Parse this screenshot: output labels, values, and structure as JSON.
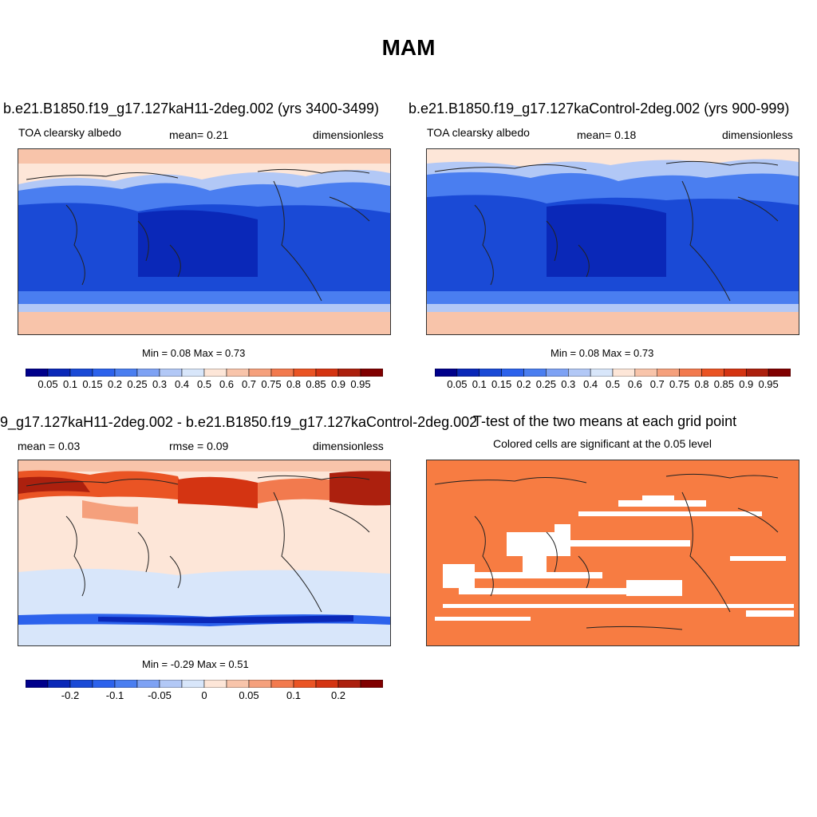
{
  "page_title": "MAM",
  "panels": [
    {
      "title": "b.e21.B1850.f19_g17.127kaH11-2deg.002 (yrs 3400-3499)",
      "left_label": "TOA clearsky albedo",
      "center_label": "mean=   0.21",
      "right_label": "dimensionless",
      "minmax": "Min =   0.08 Max =   0.73",
      "tick_labels": [
        "0.05",
        "0.1",
        "0.15",
        "0.2",
        "0.25",
        "0.3",
        "0.4",
        "0.5",
        "0.6",
        "0.7",
        "0.75",
        "0.8",
        "0.85",
        "0.9",
        "0.95"
      ]
    },
    {
      "title": "b.e21.B1850.f19_g17.127kaControl-2deg.002 (yrs 900-999)",
      "left_label": "TOA clearsky albedo",
      "center_label": "mean=   0.18",
      "right_label": "dimensionless",
      "minmax": "Min =   0.08 Max =   0.73",
      "tick_labels": [
        "0.05",
        "0.1",
        "0.15",
        "0.2",
        "0.25",
        "0.3",
        "0.4",
        "0.5",
        "0.6",
        "0.7",
        "0.75",
        "0.8",
        "0.85",
        "0.9",
        "0.95"
      ]
    },
    {
      "title": "9_g17.127kaH11-2deg.002 - b.e21.B1850.f19_g17.127kaControl-2deg.002",
      "left_label": "mean =   0.03",
      "center_label": "rmse =   0.09",
      "right_label": "dimensionless",
      "minmax": "Min =  -0.29 Max =   0.51",
      "tick_labels": [
        "-0.2",
        "-0.1",
        "-0.05",
        "0",
        "0.05",
        "0.1",
        "0.2"
      ]
    },
    {
      "title": "T-test of the two means at each grid point",
      "subtitle": "Colored cells are significant at the 0.05 level"
    }
  ],
  "colors": {
    "albedo_scale": [
      "#00008b",
      "#0a28b8",
      "#1a4ad6",
      "#2c62ec",
      "#4a7ef0",
      "#7ea2f4",
      "#b2c8f6",
      "#d8e6fa",
      "#fde6d8",
      "#f8c4aa",
      "#f5a07c",
      "#f27a4e",
      "#ea5424",
      "#d43412",
      "#ac200e",
      "#800000"
    ],
    "diff_scale": [
      "#00008b",
      "#0a28b8",
      "#1a4ad6",
      "#2c62ec",
      "#4a7ef0",
      "#7ea2f4",
      "#b2c8f6",
      "#d8e6fa",
      "#fde6d8",
      "#f8c4aa",
      "#f5a07c",
      "#f27a4e",
      "#ea5424",
      "#d43412",
      "#ac200e",
      "#800000"
    ],
    "ttest_fill": "#f77c42"
  }
}
